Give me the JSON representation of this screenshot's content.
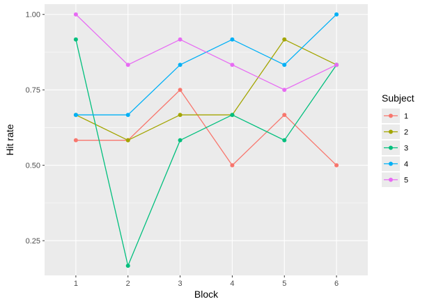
{
  "chart_data": {
    "type": "line",
    "xlabel": "Block",
    "ylabel": "Hit rate",
    "x": [
      1,
      2,
      3,
      4,
      5,
      6
    ],
    "xlim": [
      0.4,
      6.6
    ],
    "ylim": [
      0.135,
      1.034
    ],
    "y_ticks": [
      0.25,
      0.5,
      0.75,
      1.0
    ],
    "y_tick_labels": [
      "0.25",
      "0.50",
      "0.75",
      "1.00"
    ],
    "x_ticks": [
      1,
      2,
      3,
      4,
      5,
      6
    ],
    "x_tick_labels": [
      "1",
      "2",
      "3",
      "4",
      "5",
      "6"
    ],
    "grid": true,
    "legend": {
      "title": "Subject",
      "placement": "right"
    },
    "series": [
      {
        "name": "1",
        "color": "#F8766D",
        "values": [
          0.583,
          0.583,
          0.75,
          0.5,
          0.667,
          0.5
        ]
      },
      {
        "name": "2",
        "color": "#A3A500",
        "values": [
          0.667,
          0.583,
          0.667,
          0.667,
          0.917,
          0.833
        ]
      },
      {
        "name": "3",
        "color": "#00BF7D",
        "values": [
          0.917,
          0.167,
          0.583,
          0.667,
          0.583,
          0.833
        ]
      },
      {
        "name": "4",
        "color": "#00B0F6",
        "values": [
          0.667,
          0.667,
          0.833,
          0.917,
          0.833,
          1.0
        ]
      },
      {
        "name": "5",
        "color": "#E76BF3",
        "values": [
          1.0,
          0.833,
          0.917,
          0.833,
          0.75,
          0.833
        ]
      }
    ]
  }
}
